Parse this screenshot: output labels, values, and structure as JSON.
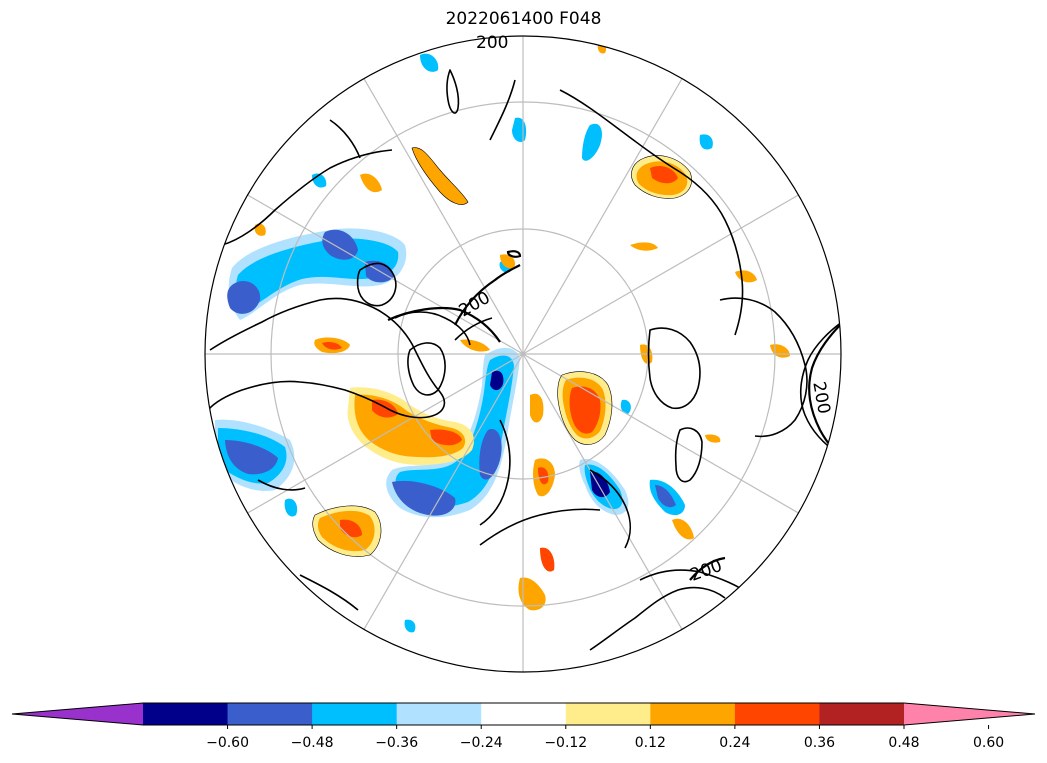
{
  "map": {
    "title": "2022061400 F048",
    "contour_label": "200",
    "projection": "north-polar-stereographic",
    "graticule": "on"
  },
  "colorbar": {
    "extend": "both",
    "tick_labels": [
      "−0.60",
      "−0.48",
      "−0.36",
      "−0.24",
      "−0.12",
      "0.12",
      "0.24",
      "0.36",
      "0.48",
      "0.60"
    ],
    "colors": [
      "#9932cc",
      "#00008b",
      "#3a5fcd",
      "#00bfff",
      "#b0e2ff",
      "#ffffff",
      "#ffec8b",
      "#ffa500",
      "#ff4500",
      "#b22222",
      "#ff82ab"
    ]
  }
}
